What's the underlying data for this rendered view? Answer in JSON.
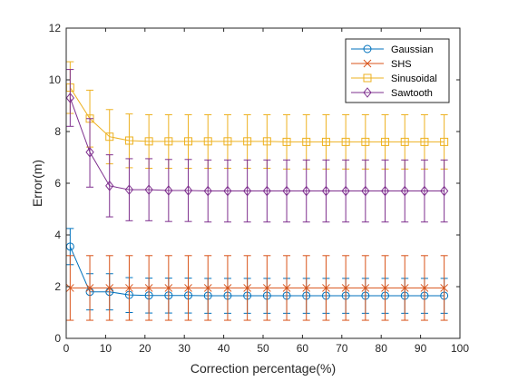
{
  "chart_data": {
    "type": "line",
    "title": "",
    "xlabel": "Correction percentage(%)",
    "ylabel": "Error(m)",
    "xlim": [
      0,
      100
    ],
    "ylim": [
      0,
      12
    ],
    "x_ticks": [
      0,
      10,
      20,
      30,
      40,
      50,
      60,
      70,
      80,
      90,
      100
    ],
    "y_ticks": [
      0,
      2,
      4,
      6,
      8,
      10,
      12
    ],
    "grid": false,
    "legend_position": "top-right",
    "x": [
      1,
      6,
      11,
      16,
      21,
      26,
      31,
      36,
      41,
      46,
      51,
      56,
      61,
      66,
      71,
      76,
      81,
      86,
      91,
      96
    ],
    "series": [
      {
        "name": "Gaussian",
        "color": "#0072BD",
        "marker": "circle",
        "values": [
          3.55,
          1.8,
          1.8,
          1.68,
          1.66,
          1.66,
          1.66,
          1.65,
          1.65,
          1.65,
          1.65,
          1.65,
          1.65,
          1.65,
          1.65,
          1.65,
          1.65,
          1.65,
          1.65,
          1.65
        ],
        "err_upper": [
          4.25,
          2.5,
          2.5,
          2.35,
          2.33,
          2.33,
          2.33,
          2.32,
          2.32,
          2.32,
          2.32,
          2.32,
          2.32,
          2.32,
          2.32,
          2.32,
          2.32,
          2.32,
          2.32,
          2.32
        ],
        "err_lower": [
          2.85,
          1.1,
          1.1,
          1.0,
          0.98,
          0.98,
          0.98,
          0.97,
          0.97,
          0.97,
          0.97,
          0.97,
          0.97,
          0.97,
          0.97,
          0.97,
          0.97,
          0.97,
          0.97,
          0.97
        ]
      },
      {
        "name": "SHS",
        "color": "#D95319",
        "marker": "x",
        "values": [
          1.95,
          1.95,
          1.95,
          1.95,
          1.95,
          1.95,
          1.95,
          1.95,
          1.95,
          1.95,
          1.95,
          1.95,
          1.95,
          1.95,
          1.95,
          1.95,
          1.95,
          1.95,
          1.95,
          1.95
        ],
        "err_upper": [
          3.2,
          3.2,
          3.2,
          3.2,
          3.2,
          3.2,
          3.2,
          3.2,
          3.2,
          3.2,
          3.2,
          3.2,
          3.2,
          3.2,
          3.2,
          3.2,
          3.2,
          3.2,
          3.2,
          3.2
        ],
        "err_lower": [
          0.7,
          0.7,
          0.7,
          0.7,
          0.7,
          0.7,
          0.7,
          0.7,
          0.7,
          0.7,
          0.7,
          0.7,
          0.7,
          0.7,
          0.7,
          0.7,
          0.7,
          0.7,
          0.7,
          0.7
        ]
      },
      {
        "name": "Sinusoidal",
        "color": "#EDB120",
        "marker": "square",
        "values": [
          9.7,
          8.5,
          7.8,
          7.65,
          7.62,
          7.62,
          7.62,
          7.62,
          7.62,
          7.62,
          7.62,
          7.6,
          7.6,
          7.6,
          7.6,
          7.6,
          7.6,
          7.6,
          7.6,
          7.6
        ],
        "err_upper": [
          10.7,
          9.6,
          8.85,
          8.68,
          8.65,
          8.65,
          8.65,
          8.65,
          8.65,
          8.65,
          8.65,
          8.65,
          8.65,
          8.65,
          8.65,
          8.65,
          8.65,
          8.65,
          8.65,
          8.65
        ],
        "err_lower": [
          8.7,
          7.4,
          6.75,
          6.6,
          6.58,
          6.58,
          6.58,
          6.58,
          6.58,
          6.58,
          6.58,
          6.55,
          6.55,
          6.55,
          6.55,
          6.55,
          6.55,
          6.55,
          6.55,
          6.55
        ]
      },
      {
        "name": "Sawtooth",
        "color": "#7E2F8E",
        "marker": "diamond",
        "values": [
          9.3,
          7.2,
          5.9,
          5.75,
          5.75,
          5.72,
          5.72,
          5.7,
          5.7,
          5.7,
          5.7,
          5.7,
          5.7,
          5.7,
          5.7,
          5.7,
          5.7,
          5.7,
          5.7,
          5.7
        ],
        "err_upper": [
          10.4,
          8.5,
          7.1,
          6.95,
          6.95,
          6.92,
          6.92,
          6.9,
          6.9,
          6.9,
          6.9,
          6.9,
          6.9,
          6.9,
          6.9,
          6.9,
          6.9,
          6.9,
          6.9,
          6.9
        ],
        "err_lower": [
          8.2,
          5.85,
          4.7,
          4.55,
          4.55,
          4.52,
          4.52,
          4.5,
          4.5,
          4.5,
          4.5,
          4.5,
          4.5,
          4.5,
          4.5,
          4.5,
          4.5,
          4.5,
          4.5,
          4.5
        ]
      }
    ]
  }
}
